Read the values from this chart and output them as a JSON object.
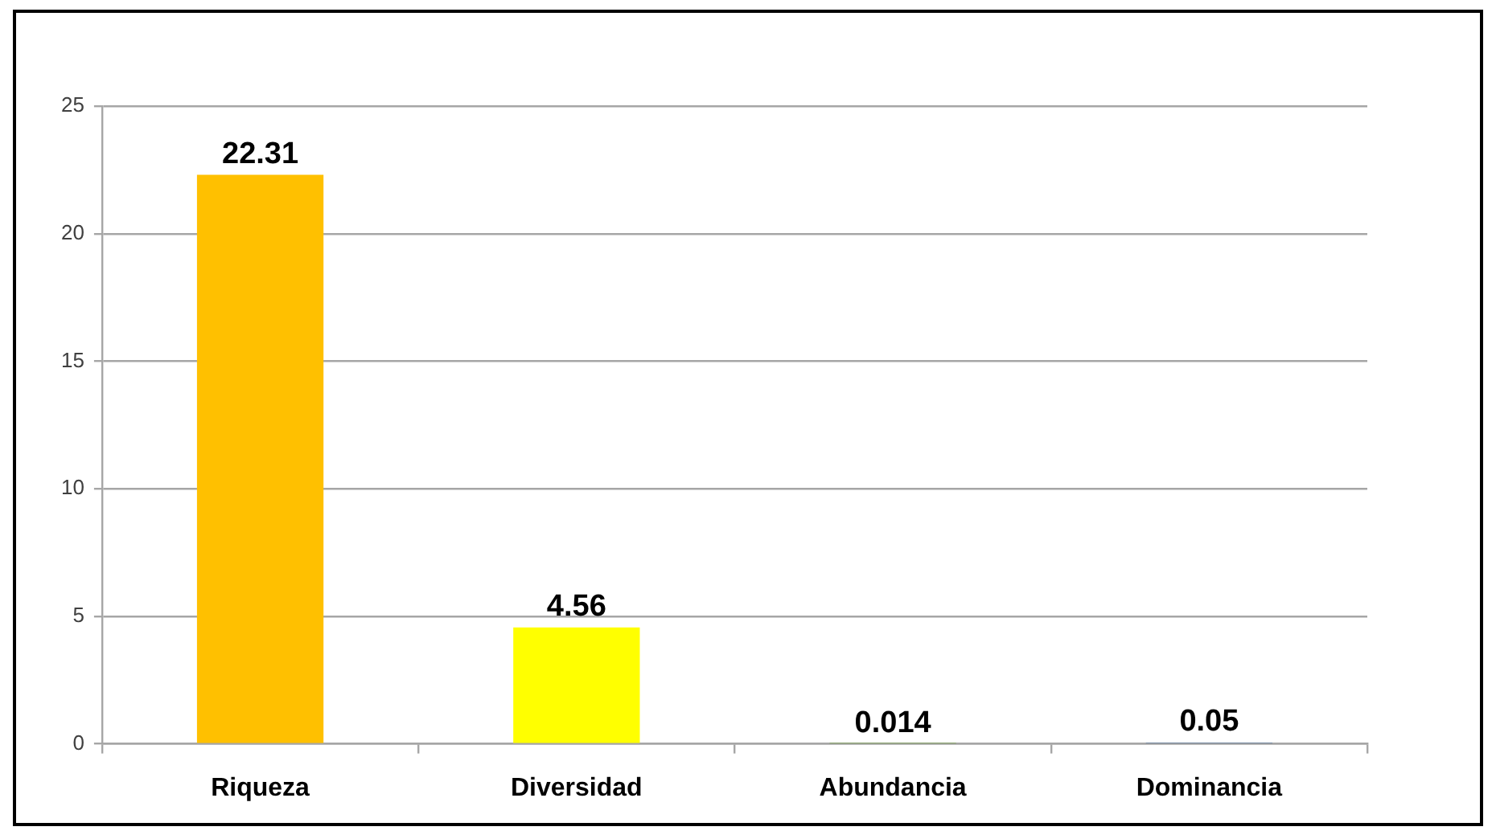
{
  "chart_data": {
    "type": "bar",
    "categories": [
      "Riqueza",
      "Diversidad",
      "Abundancia",
      "Dominancia"
    ],
    "values": [
      22.31,
      4.56,
      0.014,
      0.05
    ],
    "colors": [
      "#ffc000",
      "#ffff00",
      "#70a03c",
      "#386090"
    ],
    "ylim": [
      0,
      25
    ],
    "yticks": [
      0,
      5,
      10,
      15,
      20,
      25
    ],
    "grid": "y",
    "data_labels": true
  }
}
